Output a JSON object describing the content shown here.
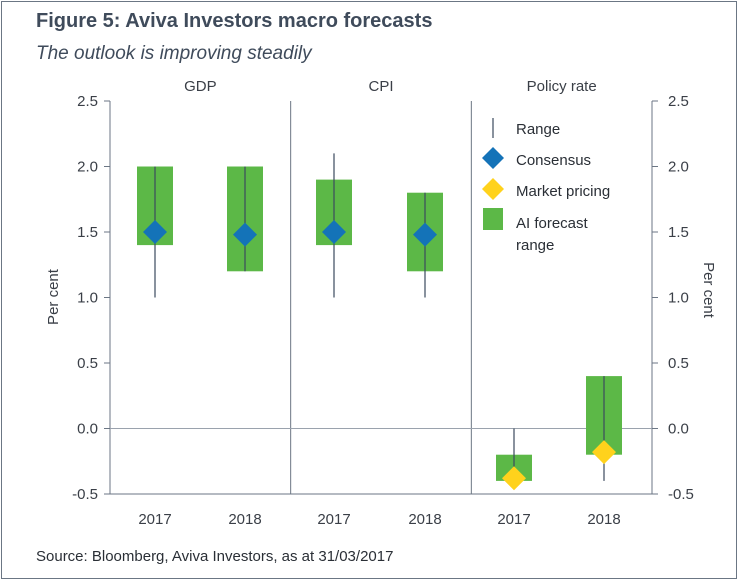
{
  "title": "Figure 5: Aviva Investors macro forecasts",
  "subtitle": "The outlook is improving steadily",
  "source": "Source: Bloomberg, Aviva Investors, as at 31/03/2017",
  "chart_data": {
    "type": "range-bar",
    "panels": [
      "GDP",
      "CPI",
      "Policy rate"
    ],
    "categories": [
      "2017",
      "2018",
      "2017",
      "2018",
      "2017",
      "2018"
    ],
    "ylabel": "Per cent",
    "y2label": "Per cent",
    "ylim": [
      -0.5,
      2.5
    ],
    "yticks": [
      "2.5",
      "2.0",
      "1.5",
      "1.0",
      "0.5",
      "0.0",
      "-0.5"
    ],
    "grid": false,
    "zero_line": true,
    "legend_position": "top-right",
    "legend": [
      "Range",
      "Consensus",
      "Market pricing",
      "AI forecast range"
    ],
    "series": [
      {
        "name": "Range",
        "low": [
          1.0,
          1.2,
          1.0,
          1.0,
          -0.4,
          -0.4
        ],
        "high": [
          2.0,
          2.0,
          2.1,
          1.8,
          0.0,
          0.4
        ]
      },
      {
        "name": "AI forecast range",
        "low": [
          1.4,
          1.2,
          1.4,
          1.2,
          -0.4,
          -0.2
        ],
        "high": [
          2.0,
          2.0,
          1.9,
          1.8,
          -0.2,
          0.4
        ]
      },
      {
        "name": "Consensus",
        "values": [
          1.5,
          1.48,
          1.5,
          1.48,
          null,
          null
        ]
      },
      {
        "name": "Market pricing",
        "values": [
          null,
          null,
          null,
          null,
          -0.38,
          -0.18
        ]
      }
    ],
    "colors": {
      "range": "#3b4a5e",
      "consensus": "#1473b8",
      "market": "#ffd21c",
      "forecast": "#5cb847",
      "axis": "#6b7684",
      "text": "#3a3f47"
    }
  }
}
